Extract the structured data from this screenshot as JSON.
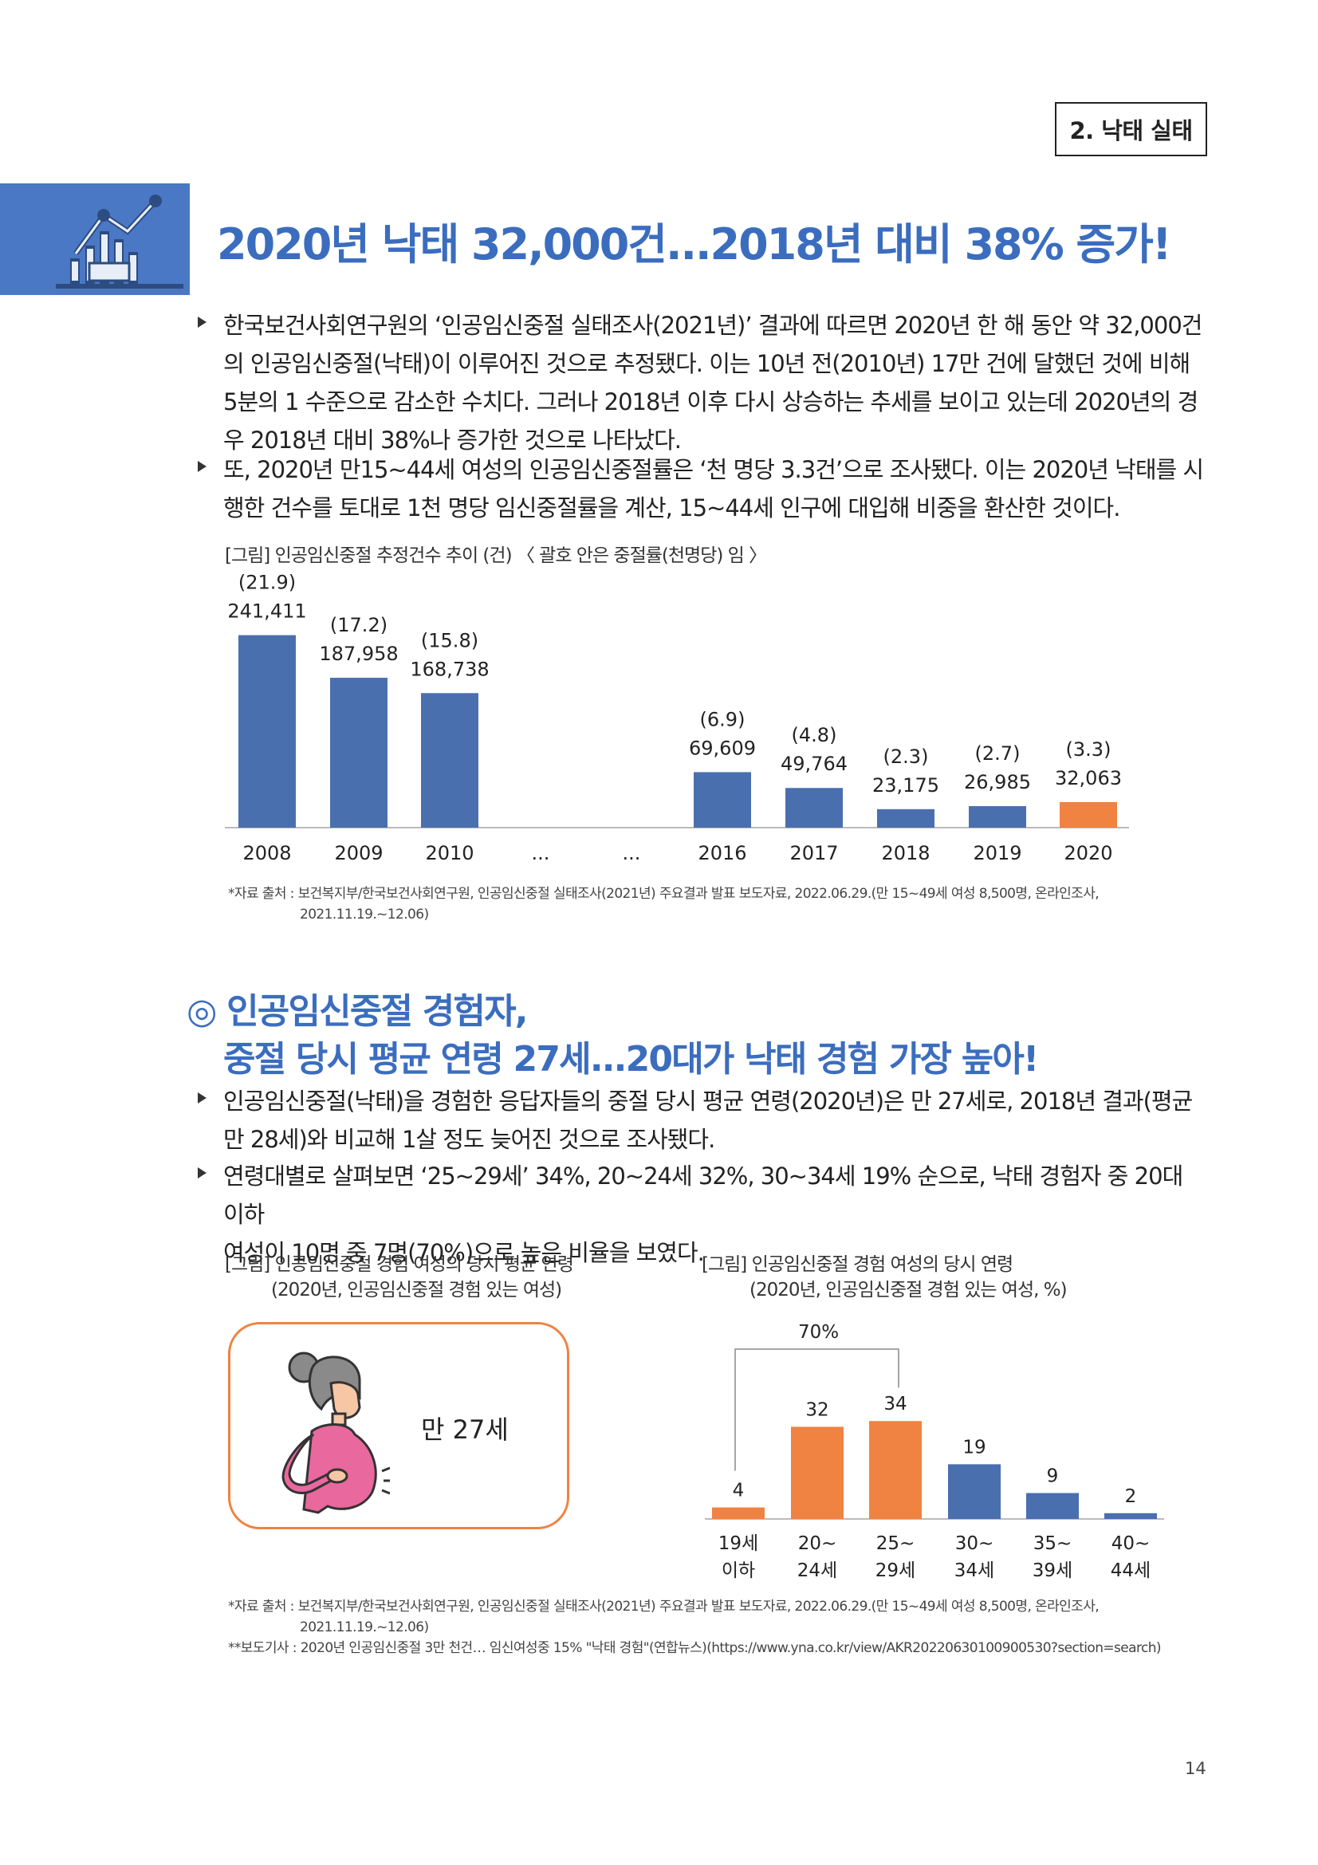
{
  "section_tag": "2. 낙태 실태",
  "heading1": "2020년 낙태 32,000건...2018년 대비 38% 증가!",
  "paragraphs1": [
    [
      "한국보건사회연구원의 ‘인공임신중절 실태조사(2021년)’ 결과에 따르면 2020년 한 해 동안 약 32,000건",
      "의 인공임신중절(낙태)이 이루어진 것으로 추정됐다. 이는 10년 전(2010년) 17만 건에 달했던 것에 비해",
      "5분의 1 수준으로 감소한 수치다. 그러나 2018년 이후 다시 상승하는 추세를 보이고 있는데 2020년의 경",
      "우 2018년 대비 38%나 증가한 것으로 나타났다."
    ],
    [
      "또, 2020년 만15~44세 여성의 인공임신중절률은 ‘천 명당 3.3건’으로 조사됐다. 이는 2020년 낙태를 시",
      "행한 건수를 토대로 1천 명당 임신중절률을 계산, 15~44세 인구에 대입해 비중을 환산한 것이다."
    ]
  ],
  "fig1_caption": "[그림] 인공임신중절 추정건수 추이 (건) 〈 괄호 안은 중절률(천명당) 임 〉",
  "fig1_source": [
    "*자료 출처 : 보건복지부/한국보건사회연구원, 인공임신중절 실태조사(2021년) 주요결과 발표 보도자료, 2022.06.29.(만 15~49세 여성 8,500명, 온라인조사,",
    "2021.11.19.~12.06)"
  ],
  "heading2": [
    "◎ 인공임신중절 경험자,",
    "중절 당시 평균 연령 27세...20대가 낙태 경험 가장 높아!"
  ],
  "paragraphs2": [
    [
      "인공임신중절(낙태)을 경험한 응답자들의 중절 당시 평균 연령(2020년)은 만 27세로, 2018년 결과(평균",
      "만 28세)와 비교해 1살 정도 늦어진 것으로 조사됐다."
    ],
    [
      "연령대별로 살펴보면 ‘25~29세’ 34%, 20~24세 32%, 30~34세 19% 순으로, 낙태 경험자 중 20대 이하",
      "여성이 10명 중 7명(70%)으로 높은 비율을 보였다."
    ]
  ],
  "fig2_caption": [
    "[그림] 인공임신중절 경험 여성의 당시 평균 연령",
    "(2020년, 인공임신중절 경험 있는 여성)"
  ],
  "fig2_value": "만 27세",
  "fig3_caption": [
    "[그림] 인공임신중절 경험 여성의 당시 연령",
    "(2020년, 인공임신중절 경험 있는 여성, %)"
  ],
  "fig3_bracket_label": "70%",
  "sources_bottom": [
    "*자료 출처 : 보건복지부/한국보건사회연구원, 인공임신중절 실태조사(2021년) 주요결과 발표 보도자료, 2022.06.29.(만 15~49세 여성 8,500명, 온라인조사,",
    "2021.11.19.~12.06)",
    "**보도기사 : 2020년 인공임신중절 3만 천건… 임신여성중 15% \"낙태 경험\"(연합뉴스)(https://www.yna.co.kr/view/AKR20220630100900530?section=search)"
  ],
  "page_number": "14",
  "icon": "analytics-chart-icon",
  "colors": {
    "blue": "#4A6FAF",
    "orange": "#F08242",
    "heading_blue": "#3B6DBF"
  },
  "chart_data": [
    {
      "type": "bar",
      "categories": [
        "2008",
        "2009",
        "2010",
        "...",
        "...",
        "2016",
        "2017",
        "2018",
        "2019",
        "2020"
      ],
      "values": [
        241411,
        187958,
        168738,
        null,
        null,
        69609,
        49764,
        23175,
        26985,
        32063
      ],
      "value_labels": [
        "241,411",
        "187,958",
        "168,738",
        "",
        "",
        "69,609",
        "49,764",
        "23,175",
        "26,985",
        "32,063"
      ],
      "rate_labels": [
        "(21.9)",
        "(17.2)",
        "(15.8)",
        "",
        "",
        "(6.9)",
        "(4.8)",
        "(2.3)",
        "(2.7)",
        "(3.3)"
      ],
      "highlight_index": 9,
      "ylim": [
        0,
        250000
      ]
    },
    {
      "type": "bar",
      "categories": [
        [
          "19세",
          "이하"
        ],
        [
          "20~",
          "24세"
        ],
        [
          "25~",
          "29세"
        ],
        [
          "30~",
          "34세"
        ],
        [
          "35~",
          "39세"
        ],
        [
          "40~",
          "44세"
        ]
      ],
      "values": [
        4,
        32,
        34,
        19,
        9,
        2
      ],
      "highlight": [
        true,
        true,
        true,
        false,
        false,
        false
      ],
      "ylim": [
        0,
        36
      ]
    }
  ]
}
